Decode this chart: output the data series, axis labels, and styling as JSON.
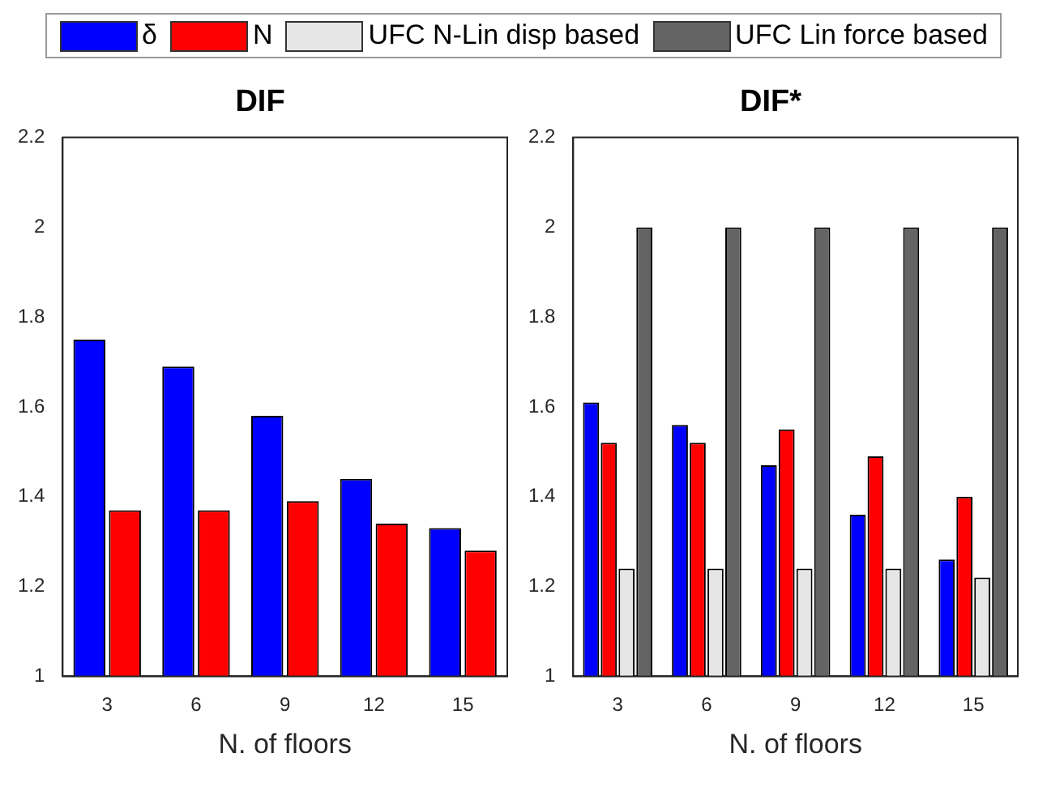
{
  "chart_data": [
    {
      "type": "bar",
      "title": "DIF",
      "xlabel": "N. of floors",
      "categories": [
        "3",
        "6",
        "9",
        "12",
        "15"
      ],
      "series": [
        {
          "name": "δ",
          "color": "#0000ff",
          "values": [
            1.75,
            1.69,
            1.58,
            1.44,
            1.33
          ]
        },
        {
          "name": "N",
          "color": "#ff0000",
          "values": [
            1.37,
            1.37,
            1.39,
            1.34,
            1.28
          ]
        }
      ],
      "ylim": [
        1,
        2.2
      ],
      "yticks": [
        1,
        1.2,
        1.4,
        1.6,
        1.8,
        2,
        2.2
      ],
      "legend": "top"
    },
    {
      "type": "bar",
      "title": "DIF*",
      "xlabel": "N. of floors",
      "categories": [
        "3",
        "6",
        "9",
        "12",
        "15"
      ],
      "series": [
        {
          "color": "#0000ff",
          "values": [
            1.61,
            1.56,
            1.47,
            1.36,
            1.26
          ]
        },
        {
          "color": "#ff0000",
          "values": [
            1.52,
            1.52,
            1.55,
            1.49,
            1.4
          ]
        },
        {
          "name": "UFC N-Lin disp based",
          "color": "#e6e6e6",
          "values": [
            1.24,
            1.24,
            1.24,
            1.24,
            1.22
          ]
        },
        {
          "name": "UFC Lin force based",
          "color": "#646464",
          "values": [
            2,
            2,
            2,
            2,
            2
          ]
        }
      ],
      "ylim": [
        1,
        2.2
      ],
      "yticks": [
        1,
        1.2,
        1.4,
        1.6,
        1.8,
        2,
        2.2
      ],
      "legend": "top"
    }
  ]
}
